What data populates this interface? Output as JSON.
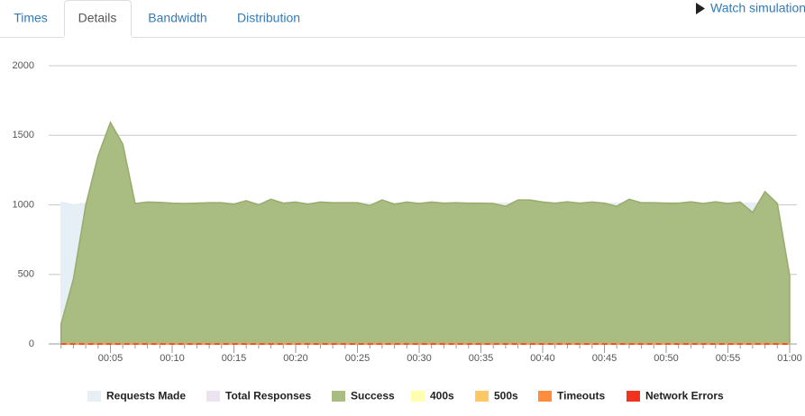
{
  "tabs": [
    "Times",
    "Details",
    "Bandwidth",
    "Distribution"
  ],
  "watch_link": "Watch simulation",
  "chart_data": {
    "type": "area",
    "x": [
      1,
      2,
      3,
      4,
      5,
      6,
      7,
      8,
      9,
      10,
      11,
      12,
      13,
      14,
      15,
      16,
      17,
      18,
      19,
      20,
      21,
      22,
      23,
      24,
      25,
      26,
      27,
      28,
      29,
      30,
      31,
      32,
      33,
      34,
      35,
      36,
      37,
      38,
      39,
      40,
      41,
      42,
      43,
      44,
      45,
      46,
      47,
      48,
      49,
      50,
      51,
      52,
      53,
      54,
      55,
      56,
      57,
      58,
      59,
      60
    ],
    "xlim": [
      0,
      60
    ],
    "xticks": [
      {
        "value": 5,
        "label": "00:05"
      },
      {
        "value": 10,
        "label": "00:10"
      },
      {
        "value": 15,
        "label": "00:15"
      },
      {
        "value": 20,
        "label": "00:20"
      },
      {
        "value": 25,
        "label": "00:25"
      },
      {
        "value": 30,
        "label": "00:30"
      },
      {
        "value": 35,
        "label": "00:35"
      },
      {
        "value": 40,
        "label": "00:40"
      },
      {
        "value": 45,
        "label": "00:45"
      },
      {
        "value": 50,
        "label": "00:50"
      },
      {
        "value": 55,
        "label": "00:55"
      },
      {
        "value": 60,
        "label": "01:00"
      }
    ],
    "ylim": [
      0,
      2000
    ],
    "yticks": [
      0,
      500,
      1000,
      1500,
      2000
    ],
    "grid": true,
    "series": [
      {
        "name": "Requests Made",
        "color": "#e6eff5",
        "values": [
          1020,
          1000,
          1012,
          1012,
          1012,
          1012,
          1012,
          1012,
          1012,
          1012,
          1012,
          1012,
          1012,
          1012,
          1012,
          1012,
          1012,
          1012,
          1012,
          1012,
          1012,
          1012,
          1012,
          1012,
          1012,
          1012,
          1012,
          1012,
          1012,
          1012,
          1012,
          1012,
          1012,
          1012,
          1012,
          1012,
          1012,
          1012,
          1012,
          1012,
          1012,
          1012,
          1012,
          1012,
          1012,
          1012,
          1012,
          1012,
          1012,
          1012,
          1012,
          1012,
          1012,
          1012,
          1012,
          1012,
          1012,
          1012,
          1012,
          495
        ]
      },
      {
        "name": "Total Responses",
        "color": "#ece3f0",
        "values": [
          142,
          466,
          997,
          1353,
          1592,
          1437,
          1010,
          1020,
          1018,
          1012,
          1010,
          1012,
          1015,
          1015,
          1005,
          1030,
          1000,
          1040,
          1012,
          1020,
          1005,
          1020,
          1015,
          1015,
          1015,
          995,
          1035,
          1005,
          1020,
          1010,
          1020,
          1012,
          1015,
          1012,
          1012,
          1010,
          990,
          1035,
          1035,
          1020,
          1012,
          1022,
          1012,
          1020,
          1012,
          990,
          1040,
          1015,
          1015,
          1012,
          1012,
          1022,
          1010,
          1022,
          1010,
          1020,
          945,
          1095,
          1010,
          490
        ]
      },
      {
        "name": "Success",
        "color": "#a9bc82",
        "values": [
          142,
          466,
          997,
          1353,
          1592,
          1437,
          1010,
          1020,
          1018,
          1012,
          1010,
          1012,
          1015,
          1015,
          1005,
          1030,
          1000,
          1040,
          1012,
          1020,
          1005,
          1020,
          1015,
          1015,
          1015,
          995,
          1035,
          1005,
          1020,
          1010,
          1020,
          1012,
          1015,
          1012,
          1012,
          1010,
          990,
          1035,
          1035,
          1020,
          1012,
          1022,
          1012,
          1020,
          1012,
          990,
          1040,
          1015,
          1015,
          1012,
          1012,
          1022,
          1010,
          1022,
          1010,
          1020,
          945,
          1095,
          1010,
          490
        ]
      },
      {
        "name": "400s",
        "color": "#ffffb0",
        "values": [
          0,
          0,
          0,
          0,
          0,
          0,
          0,
          0,
          0,
          0,
          0,
          0,
          0,
          0,
          0,
          0,
          0,
          0,
          0,
          0,
          0,
          0,
          0,
          0,
          0,
          0,
          0,
          0,
          0,
          0,
          0,
          0,
          0,
          0,
          0,
          0,
          0,
          0,
          0,
          0,
          0,
          0,
          0,
          0,
          0,
          0,
          0,
          0,
          0,
          0,
          0,
          0,
          0,
          0,
          0,
          0,
          0,
          0,
          0,
          0
        ]
      },
      {
        "name": "500s",
        "color": "#ffc864",
        "values": [
          0,
          0,
          0,
          0,
          0,
          0,
          0,
          0,
          0,
          0,
          0,
          0,
          0,
          0,
          0,
          0,
          0,
          0,
          0,
          0,
          0,
          0,
          0,
          0,
          0,
          0,
          0,
          0,
          0,
          0,
          0,
          0,
          0,
          0,
          0,
          0,
          0,
          0,
          0,
          0,
          0,
          0,
          0,
          0,
          0,
          0,
          0,
          0,
          0,
          0,
          0,
          0,
          0,
          0,
          0,
          0,
          0,
          0,
          0,
          0
        ]
      },
      {
        "name": "Timeouts",
        "color": "#ff8c3c",
        "values": [
          0,
          0,
          0,
          0,
          0,
          0,
          0,
          0,
          0,
          0,
          0,
          0,
          0,
          0,
          0,
          0,
          0,
          0,
          0,
          0,
          0,
          0,
          0,
          0,
          0,
          0,
          0,
          0,
          0,
          0,
          0,
          0,
          0,
          0,
          0,
          0,
          0,
          0,
          0,
          0,
          0,
          0,
          0,
          0,
          0,
          0,
          0,
          0,
          0,
          0,
          0,
          0,
          0,
          0,
          0,
          0,
          0,
          0,
          0,
          0
        ]
      },
      {
        "name": "Network Errors",
        "color": "#f0321e",
        "values": [
          0,
          0,
          0,
          0,
          0,
          0,
          0,
          0,
          0,
          0,
          0,
          0,
          0,
          0,
          0,
          0,
          0,
          0,
          0,
          0,
          0,
          0,
          0,
          0,
          0,
          0,
          0,
          0,
          0,
          0,
          0,
          0,
          0,
          0,
          0,
          0,
          0,
          0,
          0,
          0,
          0,
          0,
          0,
          0,
          0,
          0,
          0,
          0,
          0,
          0,
          0,
          0,
          0,
          0,
          0,
          0,
          0,
          0,
          0,
          0
        ]
      }
    ]
  }
}
